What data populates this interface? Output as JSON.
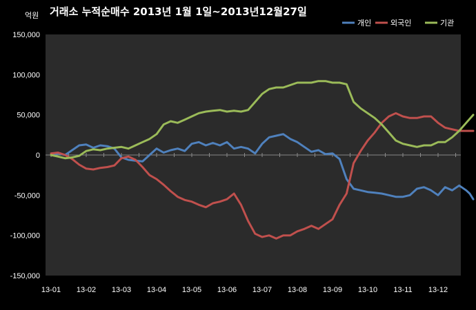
{
  "chart_data": {
    "type": "line",
    "title": "거래소 누적순매수 2013년 1월 1일~2013년12월27일",
    "unit_label": "억원",
    "xlabel": "",
    "ylabel": "",
    "ylim": [
      -150000,
      150000
    ],
    "y_ticks": [
      150000,
      100000,
      50000,
      0,
      -50000,
      -100000,
      -150000
    ],
    "y_tick_labels": [
      "150,000",
      "100,000",
      "50,000",
      "0",
      "-50,000",
      "-100,000",
      "-150,000"
    ],
    "x_tick_labels": [
      "13-01",
      "13-02",
      "13-03",
      "13-04",
      "13-05",
      "13-06",
      "13-07",
      "13-08",
      "13-09",
      "13-10",
      "13-11",
      "13-12"
    ],
    "grid": false,
    "legend_position": "top-right",
    "x_unit": "month",
    "series": [
      {
        "name": "개인",
        "color": "#4F81BD",
        "points": [
          [
            0.0,
            0
          ],
          [
            0.2,
            2000
          ],
          [
            0.4,
            0
          ],
          [
            0.6,
            6000
          ],
          [
            0.8,
            12000
          ],
          [
            1.0,
            13000
          ],
          [
            1.2,
            9000
          ],
          [
            1.4,
            12000
          ],
          [
            1.6,
            11000
          ],
          [
            1.8,
            8000
          ],
          [
            2.0,
            -3000
          ],
          [
            2.2,
            -6000
          ],
          [
            2.4,
            -7000
          ],
          [
            2.6,
            -8000
          ],
          [
            2.8,
            0
          ],
          [
            3.0,
            8000
          ],
          [
            3.2,
            3000
          ],
          [
            3.4,
            6000
          ],
          [
            3.6,
            8000
          ],
          [
            3.8,
            5000
          ],
          [
            4.0,
            14000
          ],
          [
            4.2,
            16000
          ],
          [
            4.4,
            12000
          ],
          [
            4.6,
            15000
          ],
          [
            4.8,
            12000
          ],
          [
            5.0,
            16000
          ],
          [
            5.2,
            8000
          ],
          [
            5.4,
            10000
          ],
          [
            5.6,
            8000
          ],
          [
            5.8,
            2000
          ],
          [
            6.0,
            14000
          ],
          [
            6.2,
            22000
          ],
          [
            6.4,
            24000
          ],
          [
            6.6,
            26000
          ],
          [
            6.8,
            20000
          ],
          [
            7.0,
            16000
          ],
          [
            7.2,
            10000
          ],
          [
            7.4,
            4000
          ],
          [
            7.6,
            6000
          ],
          [
            7.8,
            1000
          ],
          [
            8.0,
            2000
          ],
          [
            8.2,
            -5000
          ],
          [
            8.4,
            -30000
          ],
          [
            8.6,
            -42000
          ],
          [
            8.8,
            -44000
          ],
          [
            9.0,
            -46000
          ],
          [
            9.2,
            -47000
          ],
          [
            9.4,
            -48000
          ],
          [
            9.6,
            -50000
          ],
          [
            9.8,
            -52000
          ],
          [
            10.0,
            -52000
          ],
          [
            10.2,
            -50000
          ],
          [
            10.4,
            -42000
          ],
          [
            10.6,
            -40000
          ],
          [
            10.8,
            -44000
          ],
          [
            11.0,
            -50000
          ],
          [
            11.2,
            -40000
          ],
          [
            11.4,
            -44000
          ],
          [
            11.6,
            -38000
          ],
          [
            11.8,
            -44000
          ],
          [
            11.9,
            -48000
          ],
          [
            12.0,
            -55000
          ]
        ]
      },
      {
        "name": "외국인",
        "color": "#C0504D",
        "points": [
          [
            0.0,
            2000
          ],
          [
            0.2,
            3000
          ],
          [
            0.4,
            0
          ],
          [
            0.6,
            -5000
          ],
          [
            0.8,
            -12000
          ],
          [
            1.0,
            -17000
          ],
          [
            1.2,
            -18000
          ],
          [
            1.4,
            -16000
          ],
          [
            1.6,
            -15000
          ],
          [
            1.8,
            -13000
          ],
          [
            2.0,
            -4000
          ],
          [
            2.2,
            -2000
          ],
          [
            2.4,
            -6000
          ],
          [
            2.6,
            -15000
          ],
          [
            2.8,
            -25000
          ],
          [
            3.0,
            -30000
          ],
          [
            3.2,
            -37000
          ],
          [
            3.4,
            -45000
          ],
          [
            3.6,
            -52000
          ],
          [
            3.8,
            -56000
          ],
          [
            4.0,
            -58000
          ],
          [
            4.2,
            -62000
          ],
          [
            4.4,
            -65000
          ],
          [
            4.6,
            -60000
          ],
          [
            4.8,
            -58000
          ],
          [
            5.0,
            -55000
          ],
          [
            5.2,
            -48000
          ],
          [
            5.4,
            -62000
          ],
          [
            5.6,
            -82000
          ],
          [
            5.8,
            -98000
          ],
          [
            6.0,
            -102000
          ],
          [
            6.2,
            -100000
          ],
          [
            6.4,
            -104000
          ],
          [
            6.6,
            -100000
          ],
          [
            6.8,
            -100000
          ],
          [
            7.0,
            -95000
          ],
          [
            7.2,
            -92000
          ],
          [
            7.4,
            -88000
          ],
          [
            7.6,
            -92000
          ],
          [
            7.8,
            -86000
          ],
          [
            8.0,
            -80000
          ],
          [
            8.2,
            -62000
          ],
          [
            8.4,
            -48000
          ],
          [
            8.6,
            -10000
          ],
          [
            8.8,
            5000
          ],
          [
            9.0,
            18000
          ],
          [
            9.2,
            28000
          ],
          [
            9.4,
            40000
          ],
          [
            9.6,
            48000
          ],
          [
            9.8,
            52000
          ],
          [
            10.0,
            48000
          ],
          [
            10.2,
            46000
          ],
          [
            10.4,
            46000
          ],
          [
            10.6,
            48000
          ],
          [
            10.8,
            48000
          ],
          [
            11.0,
            40000
          ],
          [
            11.2,
            34000
          ],
          [
            11.4,
            32000
          ],
          [
            11.6,
            30000
          ],
          [
            11.8,
            30000
          ],
          [
            12.0,
            30000
          ]
        ]
      },
      {
        "name": "기관",
        "color": "#9BBB59",
        "points": [
          [
            0.0,
            0
          ],
          [
            0.2,
            -2000
          ],
          [
            0.4,
            -4000
          ],
          [
            0.6,
            -3000
          ],
          [
            0.8,
            -1000
          ],
          [
            1.0,
            5000
          ],
          [
            1.2,
            7000
          ],
          [
            1.4,
            6000
          ],
          [
            1.6,
            8000
          ],
          [
            1.8,
            9000
          ],
          [
            2.0,
            10000
          ],
          [
            2.2,
            8000
          ],
          [
            2.4,
            12000
          ],
          [
            2.6,
            16000
          ],
          [
            2.8,
            20000
          ],
          [
            3.0,
            26000
          ],
          [
            3.2,
            38000
          ],
          [
            3.4,
            42000
          ],
          [
            3.6,
            40000
          ],
          [
            3.8,
            44000
          ],
          [
            4.0,
            48000
          ],
          [
            4.2,
            52000
          ],
          [
            4.4,
            54000
          ],
          [
            4.6,
            55000
          ],
          [
            4.8,
            56000
          ],
          [
            5.0,
            54000
          ],
          [
            5.2,
            55000
          ],
          [
            5.4,
            54000
          ],
          [
            5.6,
            56000
          ],
          [
            5.8,
            66000
          ],
          [
            6.0,
            76000
          ],
          [
            6.2,
            82000
          ],
          [
            6.4,
            84000
          ],
          [
            6.6,
            84000
          ],
          [
            6.8,
            87000
          ],
          [
            7.0,
            90000
          ],
          [
            7.2,
            90000
          ],
          [
            7.4,
            90000
          ],
          [
            7.6,
            92000
          ],
          [
            7.8,
            92000
          ],
          [
            8.0,
            90000
          ],
          [
            8.2,
            90000
          ],
          [
            8.4,
            88000
          ],
          [
            8.6,
            66000
          ],
          [
            8.8,
            58000
          ],
          [
            9.0,
            52000
          ],
          [
            9.2,
            46000
          ],
          [
            9.4,
            38000
          ],
          [
            9.6,
            28000
          ],
          [
            9.8,
            18000
          ],
          [
            10.0,
            14000
          ],
          [
            10.2,
            12000
          ],
          [
            10.4,
            10000
          ],
          [
            10.6,
            12000
          ],
          [
            10.8,
            12000
          ],
          [
            11.0,
            16000
          ],
          [
            11.2,
            16000
          ],
          [
            11.4,
            22000
          ],
          [
            11.6,
            30000
          ],
          [
            11.8,
            40000
          ],
          [
            12.0,
            50000
          ]
        ]
      }
    ]
  }
}
